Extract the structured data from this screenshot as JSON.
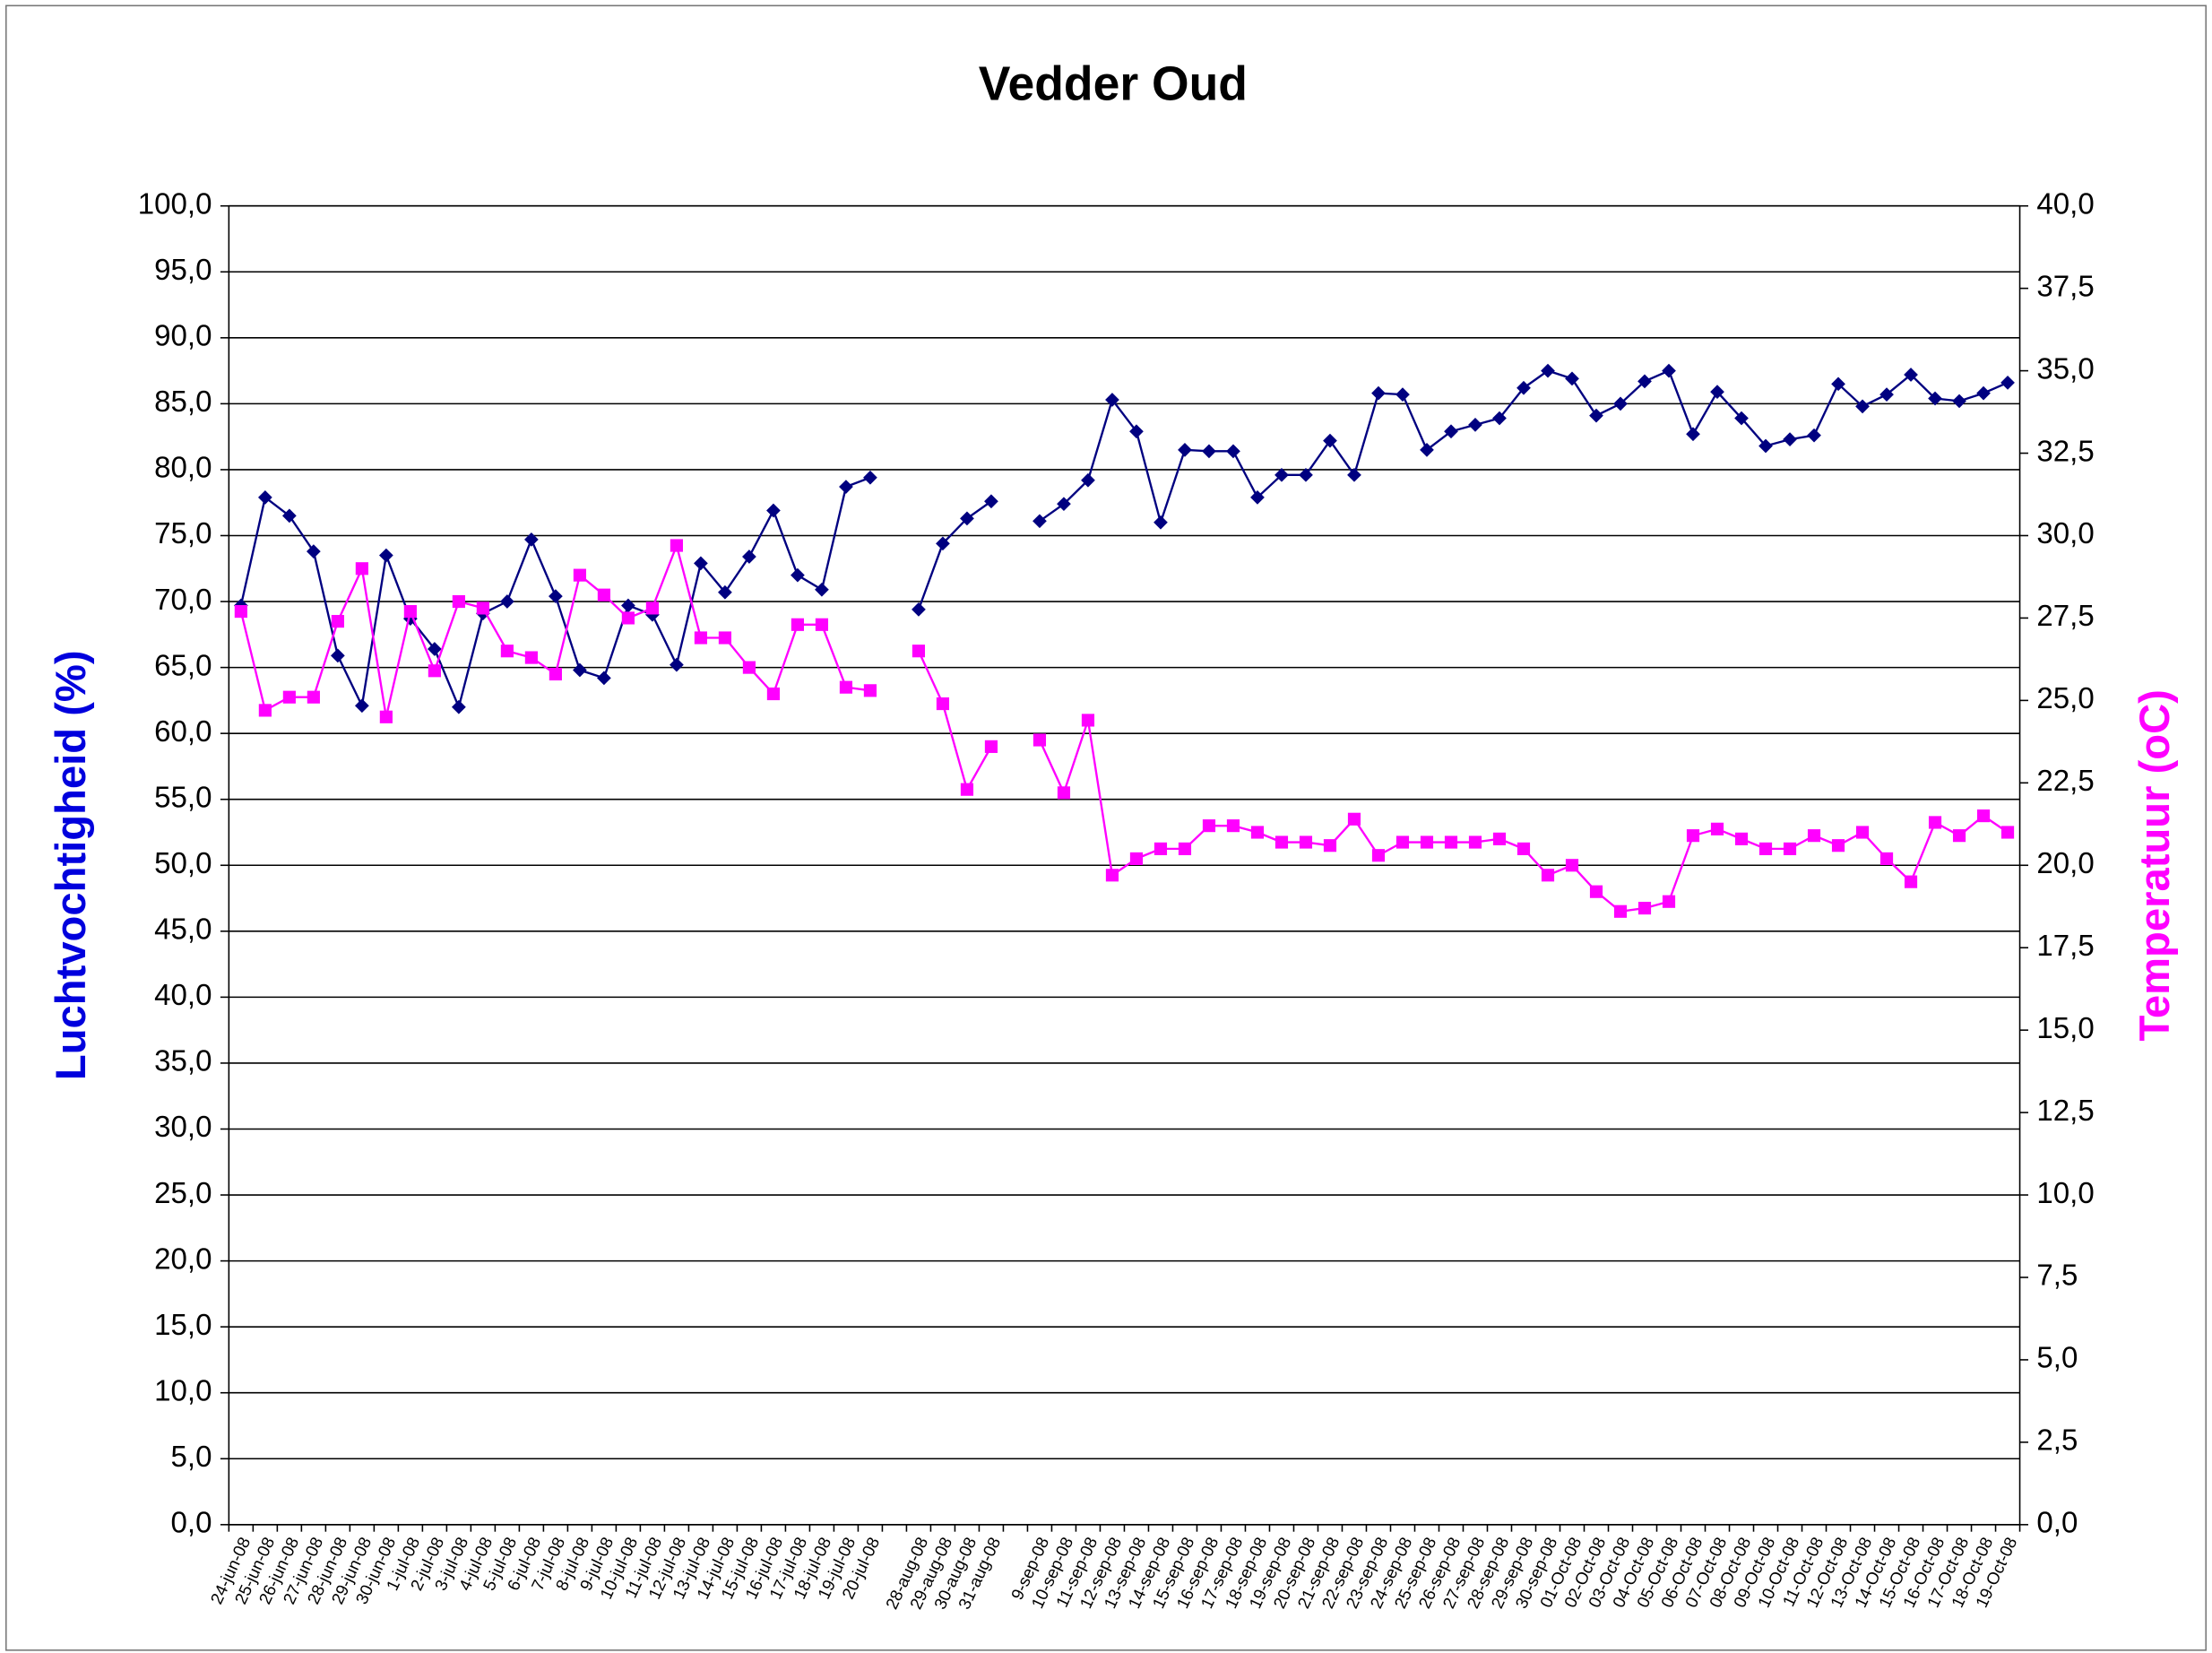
{
  "chart_data": {
    "type": "line",
    "title": "Vedder Oud",
    "ylabel": "Luchtvochtigheid (%)",
    "y2label": "Temperatuur (oC)",
    "categories": [
      "24-jun-08",
      "25-jun-08",
      "26-jun-08",
      "27-jun-08",
      "28-jun-08",
      "29-jun-08",
      "30-jun-08",
      "1-jul-08",
      "2-jul-08",
      "3-jul-08",
      "4-jul-08",
      "5-jul-08",
      "6-jul-08",
      "7-jul-08",
      "8-jul-08",
      "9-jul-08",
      "10-jul-08",
      "11-jul-08",
      "12-jul-08",
      "13-jul-08",
      "14-jul-08",
      "15-jul-08",
      "16-jul-08",
      "17-jul-08",
      "18-jul-08",
      "19-jul-08",
      "20-jul-08",
      null,
      "28-aug-08",
      "29-aug-08",
      "30-aug-08",
      "31-aug-08",
      null,
      "9-sep-08",
      "10-sep-08",
      "11-sep-08",
      "12-sep-08",
      "13-sep-08",
      "14-sep-08",
      "15-sep-08",
      "16-sep-08",
      "17-sep-08",
      "18-sep-08",
      "19-sep-08",
      "20-sep-08",
      "21-sep-08",
      "22-sep-08",
      "23-sep-08",
      "24-sep-08",
      "25-sep-08",
      "26-sep-08",
      "27-sep-08",
      "28-sep-08",
      "29-sep-08",
      "30-sep-08",
      "01-Oct-08",
      "02-Oct-08",
      "03-Oct-08",
      "04-Oct-08",
      "05-Oct-08",
      "06-Oct-08",
      "07-Oct-08",
      "08-Oct-08",
      "09-Oct-08",
      "10-Oct-08",
      "11-Oct-08",
      "12-Oct-08",
      "13-Oct-08",
      "14-Oct-08",
      "15-Oct-08",
      "16-Oct-08",
      "17-Oct-08",
      "18-Oct-08",
      "19-Oct-08"
    ],
    "series": [
      {
        "color": "#000080",
        "marker": "diamond",
        "values": [
          69.7,
          77.9,
          76.5,
          73.8,
          65.9,
          62.1,
          73.5,
          68.7,
          66.4,
          62.0,
          69.1,
          70.0,
          74.7,
          70.4,
          64.8,
          64.2,
          69.7,
          69.0,
          65.2,
          72.9,
          70.7,
          73.4,
          76.9,
          72.0,
          70.9,
          78.7,
          79.4,
          null,
          69.4,
          74.4,
          76.3,
          77.6,
          null,
          76.1,
          77.4,
          79.2,
          85.3,
          82.9,
          76.0,
          81.5,
          81.4,
          81.4,
          77.9,
          79.6,
          79.6,
          82.2,
          79.6,
          85.8,
          85.7,
          81.5,
          82.9,
          83.4,
          83.9,
          86.2,
          87.5,
          86.9,
          84.1,
          85.0,
          86.7,
          87.5,
          82.7,
          85.9,
          83.9,
          81.8,
          82.3,
          82.6,
          86.5,
          84.8,
          85.7,
          87.2,
          85.4,
          85.2,
          85.8,
          86.6
        ]
      },
      {
        "color": "#ff00ff",
        "marker": "square",
        "axis": "y2",
        "values": [
          27.7,
          24.7,
          25.1,
          25.1,
          27.4,
          29.0,
          24.5,
          27.7,
          25.9,
          28.0,
          27.8,
          26.5,
          26.3,
          25.8,
          28.8,
          28.2,
          27.5,
          27.8,
          29.7,
          26.9,
          26.9,
          26.0,
          25.2,
          27.3,
          27.3,
          25.4,
          25.3,
          null,
          26.5,
          24.9,
          22.3,
          23.6,
          null,
          23.8,
          22.2,
          24.4,
          19.7,
          20.2,
          20.5,
          20.5,
          21.2,
          21.2,
          21.0,
          20.7,
          20.7,
          20.6,
          21.4,
          20.3,
          20.7,
          20.7,
          20.7,
          20.7,
          20.8,
          20.5,
          19.7,
          20.0,
          19.2,
          18.6,
          18.7,
          18.9,
          20.9,
          21.1,
          20.8,
          20.5,
          20.5,
          20.9,
          20.6,
          21.0,
          20.2,
          19.5,
          21.3,
          20.9,
          21.5,
          21.0
        ]
      }
    ],
    "ylim": [
      0,
      100
    ],
    "yticks": [
      {
        "value": 0,
        "label": "0,0"
      },
      {
        "value": 5,
        "label": "5,0"
      },
      {
        "value": 10,
        "label": "10,0"
      },
      {
        "value": 15,
        "label": "15,0"
      },
      {
        "value": 20,
        "label": "20,0"
      },
      {
        "value": 25,
        "label": "25,0"
      },
      {
        "value": 30,
        "label": "30,0"
      },
      {
        "value": 35,
        "label": "35,0"
      },
      {
        "value": 40,
        "label": "40,0"
      },
      {
        "value": 45,
        "label": "45,0"
      },
      {
        "value": 50,
        "label": "50,0"
      },
      {
        "value": 55,
        "label": "55,0"
      },
      {
        "value": 60,
        "label": "60,0"
      },
      {
        "value": 65,
        "label": "65,0"
      },
      {
        "value": 70,
        "label": "70,0"
      },
      {
        "value": 75,
        "label": "75,0"
      },
      {
        "value": 80,
        "label": "80,0"
      },
      {
        "value": 85,
        "label": "85,0"
      },
      {
        "value": 90,
        "label": "90,0"
      },
      {
        "value": 95,
        "label": "95,0"
      },
      {
        "value": 100,
        "label": "100,0"
      }
    ],
    "y2lim": [
      0,
      40
    ],
    "y2ticks": [
      {
        "value": 0,
        "label": "0,0"
      },
      {
        "value": 2.5,
        "label": "2,5"
      },
      {
        "value": 5,
        "label": "5,0"
      },
      {
        "value": 7.5,
        "label": "7,5"
      },
      {
        "value": 10,
        "label": "10,0"
      },
      {
        "value": 12.5,
        "label": "12,5"
      },
      {
        "value": 15,
        "label": "15,0"
      },
      {
        "value": 17.5,
        "label": "17,5"
      },
      {
        "value": 20,
        "label": "20,0"
      },
      {
        "value": 22.5,
        "label": "22,5"
      },
      {
        "value": 25,
        "label": "25,0"
      },
      {
        "value": 27.5,
        "label": "27,5"
      },
      {
        "value": 30,
        "label": "30,0"
      },
      {
        "value": 32.5,
        "label": "32,5"
      },
      {
        "value": 35,
        "label": "35,0"
      },
      {
        "value": 37.5,
        "label": "37,5"
      },
      {
        "value": 40,
        "label": "40,0"
      }
    ],
    "grid": true,
    "ylabel_color": "#0000dd",
    "y2label_color": "#ff00ff"
  }
}
